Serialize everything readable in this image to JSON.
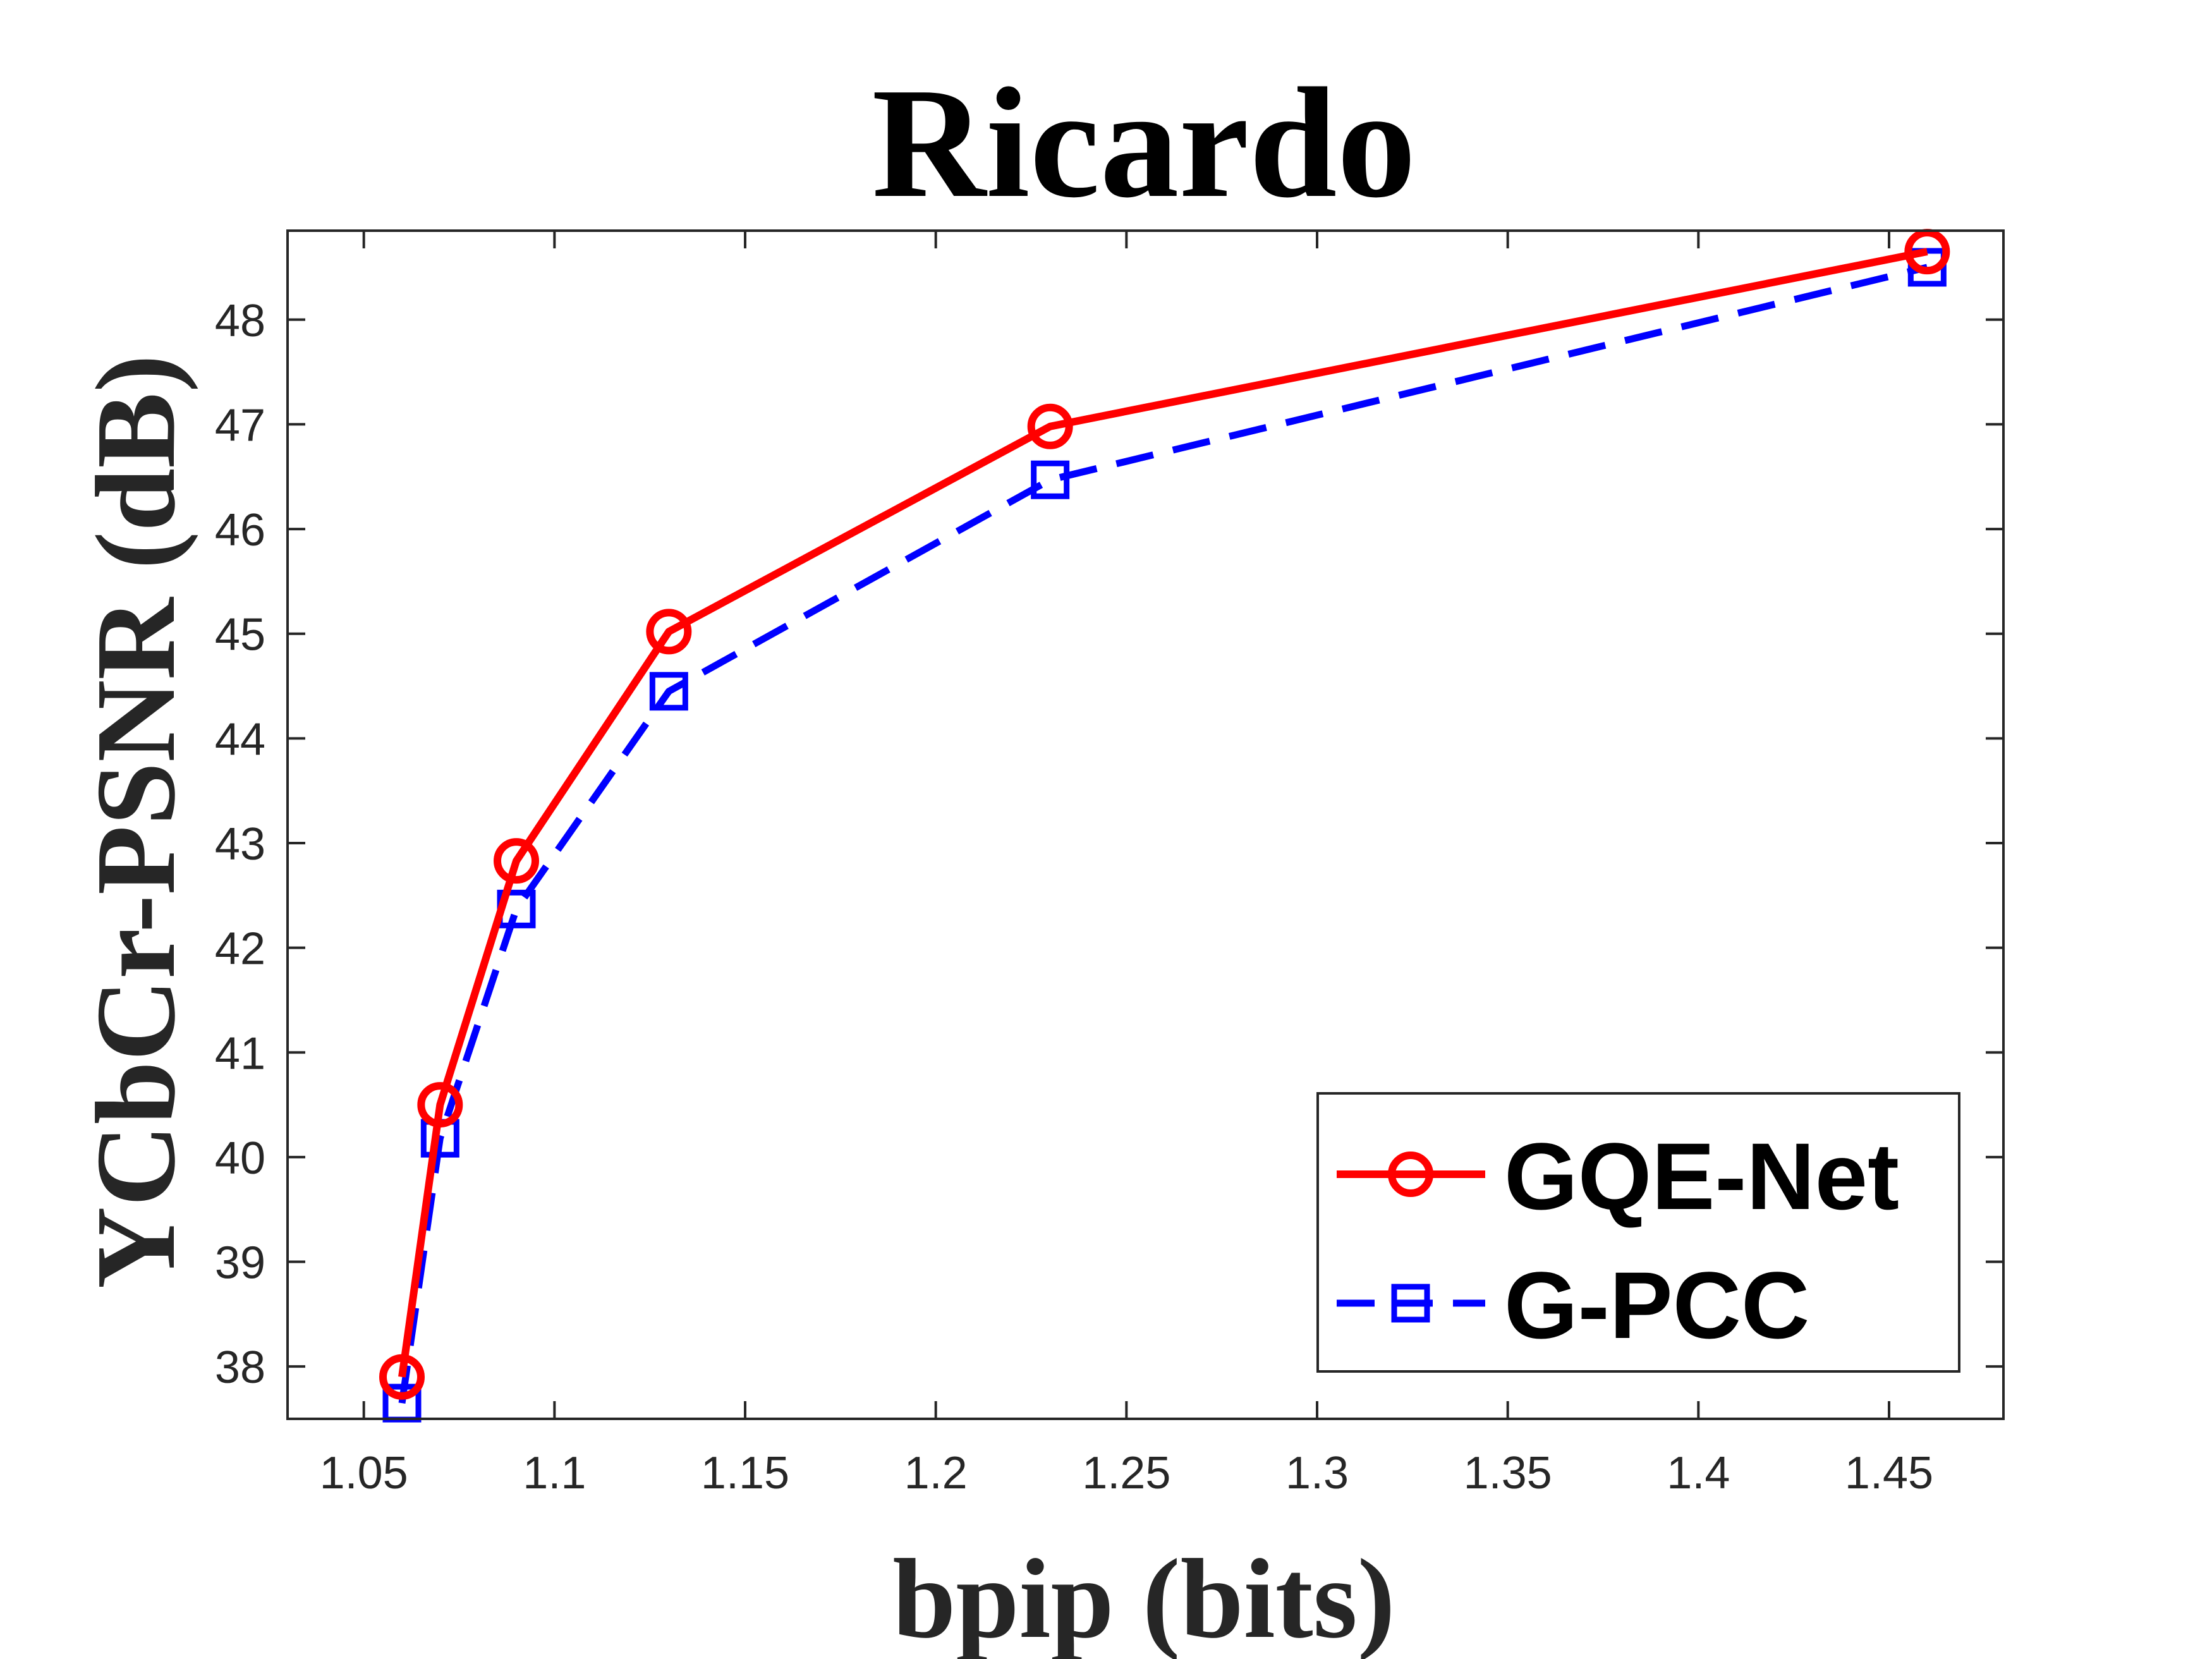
{
  "chart_data": {
    "type": "line",
    "title": "Ricardo",
    "xlabel": "bpip (bits)",
    "ylabel": "YCbCr-PSNR (dB)",
    "xlim": [
      1.03,
      1.48
    ],
    "ylim": [
      37.5,
      48.85
    ],
    "xticks": [
      1.05,
      1.1,
      1.15,
      1.2,
      1.25,
      1.3,
      1.35,
      1.4,
      1.45
    ],
    "xtick_labels": [
      "1.05",
      "1.1",
      "1.15",
      "1.2",
      "1.25",
      "1.3",
      "1.35",
      "1.4",
      "1.45"
    ],
    "yticks": [
      38,
      39,
      40,
      41,
      42,
      43,
      44,
      45,
      46,
      47,
      48
    ],
    "ytick_labels": [
      "38",
      "39",
      "40",
      "41",
      "42",
      "43",
      "44",
      "45",
      "46",
      "47",
      "48"
    ],
    "grid": false,
    "legend_position": "bottom-right",
    "series": [
      {
        "name": "GQE-Net",
        "color": "#ff0000",
        "line_style": "solid",
        "marker": "circle",
        "x": [
          1.06,
          1.07,
          1.09,
          1.13,
          1.23,
          1.46
        ],
        "y": [
          37.9,
          40.5,
          42.83,
          45.02,
          46.98,
          48.65
        ]
      },
      {
        "name": "G-PCC",
        "color": "#0000ff",
        "line_style": "dashed",
        "marker": "square",
        "x": [
          1.06,
          1.07,
          1.09,
          1.13,
          1.23,
          1.46
        ],
        "y": [
          37.65,
          40.18,
          42.37,
          44.45,
          46.47,
          48.5
        ]
      }
    ]
  }
}
